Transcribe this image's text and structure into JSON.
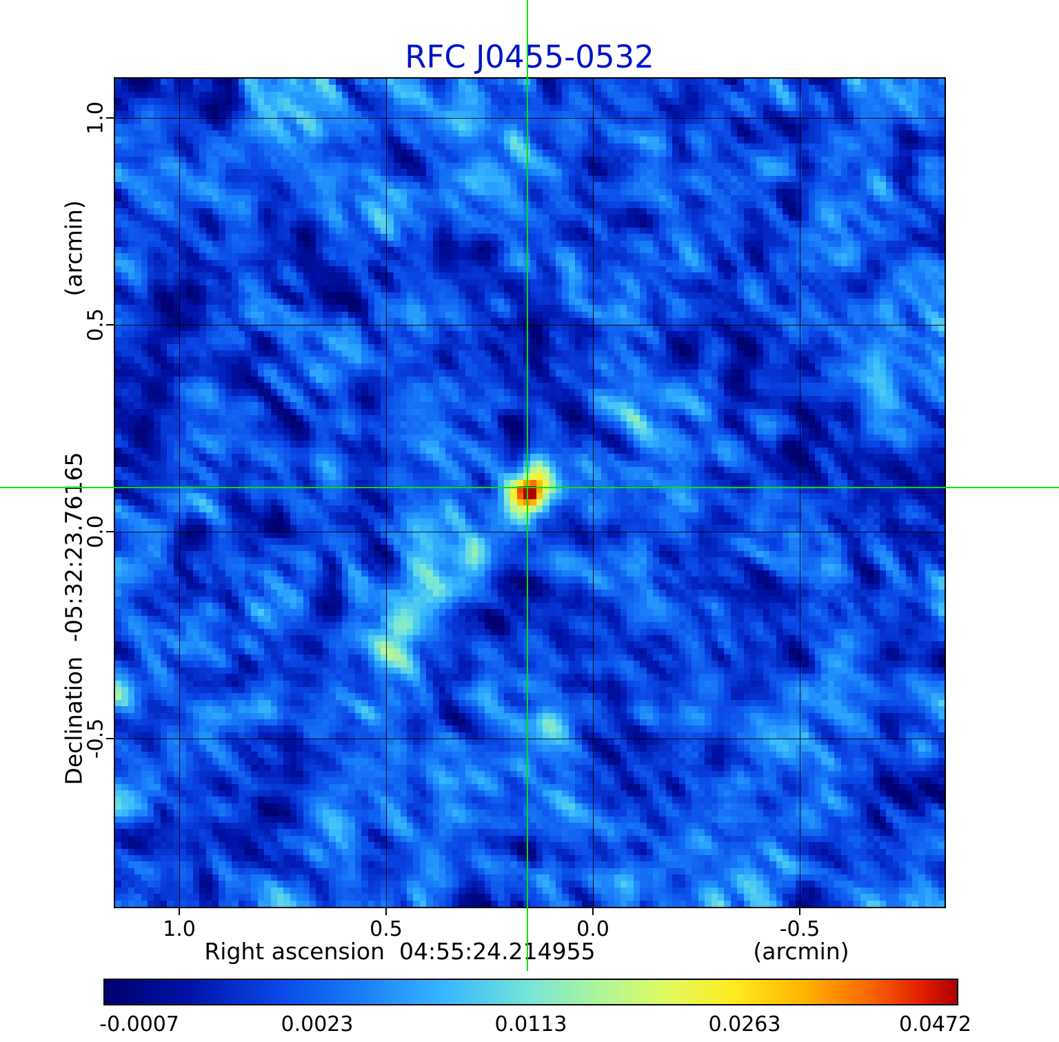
{
  "figure": {
    "title_color": "#0013cc",
    "crosshair_color": "#00e000",
    "background": "#ffffff"
  },
  "chart_data": {
    "type": "heatmap",
    "title": "RFC J0455-0532",
    "x_axis": {
      "label": "Right ascension  04:55:24.214955",
      "unit": "(arcmin)",
      "ticks": [
        {
          "label": "1.0",
          "value": 1.0
        },
        {
          "label": "0.5",
          "value": 0.5
        },
        {
          "label": "0.0",
          "value": 0.0
        },
        {
          "label": "-0.5",
          "value": -0.5
        }
      ],
      "range_arcmin": [
        1.158,
        -0.853
      ]
    },
    "y_axis": {
      "label": "Declination  -05:32:23.76165",
      "unit": "(arcmin)",
      "ticks": [
        {
          "label": "1.0",
          "value": 1.0
        },
        {
          "label": "0.5",
          "value": 0.5
        },
        {
          "label": "0.0",
          "value": 0.0
        },
        {
          "label": "-0.5",
          "value": -0.5
        }
      ],
      "range_arcmin": [
        1.097,
        -0.91
      ]
    },
    "grid": true,
    "crosshair": {
      "x_arcmin": 0.158,
      "y_arcmin": 0.107
    },
    "source_peak": {
      "x_arcmin": 0.158,
      "y_arcmin": 0.107,
      "peak_value": 0.0472
    },
    "extended_emission": {
      "x_arcmin": 0.45,
      "y_arcmin": -0.19,
      "value_approx": 0.005
    },
    "colorbar": {
      "tick_labels": [
        "-0.0007",
        "0.0023",
        "0.0113",
        "0.0263",
        "0.0472"
      ],
      "tick_positions": [
        0.042,
        0.25,
        0.5,
        0.75,
        0.973
      ],
      "colormap": [
        [
          0.0,
          "#00006e"
        ],
        [
          0.1,
          "#0014aa"
        ],
        [
          0.2,
          "#0a46e6"
        ],
        [
          0.3,
          "#197dfa"
        ],
        [
          0.4,
          "#37b9ff"
        ],
        [
          0.5,
          "#78e6d7"
        ],
        [
          0.58,
          "#aff59b"
        ],
        [
          0.66,
          "#e1fa5f"
        ],
        [
          0.74,
          "#ffeb1e"
        ],
        [
          0.82,
          "#ffb400"
        ],
        [
          0.9,
          "#fa6400"
        ],
        [
          0.96,
          "#e11e00"
        ],
        [
          1.0,
          "#af0000"
        ]
      ]
    }
  }
}
